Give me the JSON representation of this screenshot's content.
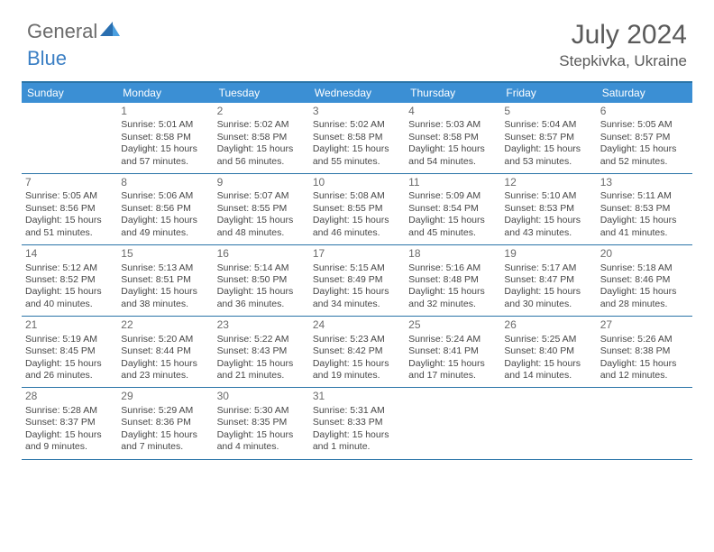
{
  "logo": {
    "text1": "General",
    "text2": "Blue"
  },
  "title": "July 2024",
  "location": "Stepkivka, Ukraine",
  "weekdays": [
    "Sunday",
    "Monday",
    "Tuesday",
    "Wednesday",
    "Thursday",
    "Friday",
    "Saturday"
  ],
  "colors": {
    "headerBar": "#3b8fd4",
    "borderLine": "#2a74a8",
    "text": "#464646",
    "titleText": "#5a5a5a"
  },
  "startOffset": 1,
  "days": [
    {
      "n": "1",
      "sunrise": "5:01 AM",
      "sunset": "8:58 PM",
      "dl": "15 hours and 57 minutes."
    },
    {
      "n": "2",
      "sunrise": "5:02 AM",
      "sunset": "8:58 PM",
      "dl": "15 hours and 56 minutes."
    },
    {
      "n": "3",
      "sunrise": "5:02 AM",
      "sunset": "8:58 PM",
      "dl": "15 hours and 55 minutes."
    },
    {
      "n": "4",
      "sunrise": "5:03 AM",
      "sunset": "8:58 PM",
      "dl": "15 hours and 54 minutes."
    },
    {
      "n": "5",
      "sunrise": "5:04 AM",
      "sunset": "8:57 PM",
      "dl": "15 hours and 53 minutes."
    },
    {
      "n": "6",
      "sunrise": "5:05 AM",
      "sunset": "8:57 PM",
      "dl": "15 hours and 52 minutes."
    },
    {
      "n": "7",
      "sunrise": "5:05 AM",
      "sunset": "8:56 PM",
      "dl": "15 hours and 51 minutes."
    },
    {
      "n": "8",
      "sunrise": "5:06 AM",
      "sunset": "8:56 PM",
      "dl": "15 hours and 49 minutes."
    },
    {
      "n": "9",
      "sunrise": "5:07 AM",
      "sunset": "8:55 PM",
      "dl": "15 hours and 48 minutes."
    },
    {
      "n": "10",
      "sunrise": "5:08 AM",
      "sunset": "8:55 PM",
      "dl": "15 hours and 46 minutes."
    },
    {
      "n": "11",
      "sunrise": "5:09 AM",
      "sunset": "8:54 PM",
      "dl": "15 hours and 45 minutes."
    },
    {
      "n": "12",
      "sunrise": "5:10 AM",
      "sunset": "8:53 PM",
      "dl": "15 hours and 43 minutes."
    },
    {
      "n": "13",
      "sunrise": "5:11 AM",
      "sunset": "8:53 PM",
      "dl": "15 hours and 41 minutes."
    },
    {
      "n": "14",
      "sunrise": "5:12 AM",
      "sunset": "8:52 PM",
      "dl": "15 hours and 40 minutes."
    },
    {
      "n": "15",
      "sunrise": "5:13 AM",
      "sunset": "8:51 PM",
      "dl": "15 hours and 38 minutes."
    },
    {
      "n": "16",
      "sunrise": "5:14 AM",
      "sunset": "8:50 PM",
      "dl": "15 hours and 36 minutes."
    },
    {
      "n": "17",
      "sunrise": "5:15 AM",
      "sunset": "8:49 PM",
      "dl": "15 hours and 34 minutes."
    },
    {
      "n": "18",
      "sunrise": "5:16 AM",
      "sunset": "8:48 PM",
      "dl": "15 hours and 32 minutes."
    },
    {
      "n": "19",
      "sunrise": "5:17 AM",
      "sunset": "8:47 PM",
      "dl": "15 hours and 30 minutes."
    },
    {
      "n": "20",
      "sunrise": "5:18 AM",
      "sunset": "8:46 PM",
      "dl": "15 hours and 28 minutes."
    },
    {
      "n": "21",
      "sunrise": "5:19 AM",
      "sunset": "8:45 PM",
      "dl": "15 hours and 26 minutes."
    },
    {
      "n": "22",
      "sunrise": "5:20 AM",
      "sunset": "8:44 PM",
      "dl": "15 hours and 23 minutes."
    },
    {
      "n": "23",
      "sunrise": "5:22 AM",
      "sunset": "8:43 PM",
      "dl": "15 hours and 21 minutes."
    },
    {
      "n": "24",
      "sunrise": "5:23 AM",
      "sunset": "8:42 PM",
      "dl": "15 hours and 19 minutes."
    },
    {
      "n": "25",
      "sunrise": "5:24 AM",
      "sunset": "8:41 PM",
      "dl": "15 hours and 17 minutes."
    },
    {
      "n": "26",
      "sunrise": "5:25 AM",
      "sunset": "8:40 PM",
      "dl": "15 hours and 14 minutes."
    },
    {
      "n": "27",
      "sunrise": "5:26 AM",
      "sunset": "8:38 PM",
      "dl": "15 hours and 12 minutes."
    },
    {
      "n": "28",
      "sunrise": "5:28 AM",
      "sunset": "8:37 PM",
      "dl": "15 hours and 9 minutes."
    },
    {
      "n": "29",
      "sunrise": "5:29 AM",
      "sunset": "8:36 PM",
      "dl": "15 hours and 7 minutes."
    },
    {
      "n": "30",
      "sunrise": "5:30 AM",
      "sunset": "8:35 PM",
      "dl": "15 hours and 4 minutes."
    },
    {
      "n": "31",
      "sunrise": "5:31 AM",
      "sunset": "8:33 PM",
      "dl": "15 hours and 1 minute."
    }
  ],
  "labels": {
    "sunrise": "Sunrise:",
    "sunset": "Sunset:",
    "daylight": "Daylight:"
  }
}
